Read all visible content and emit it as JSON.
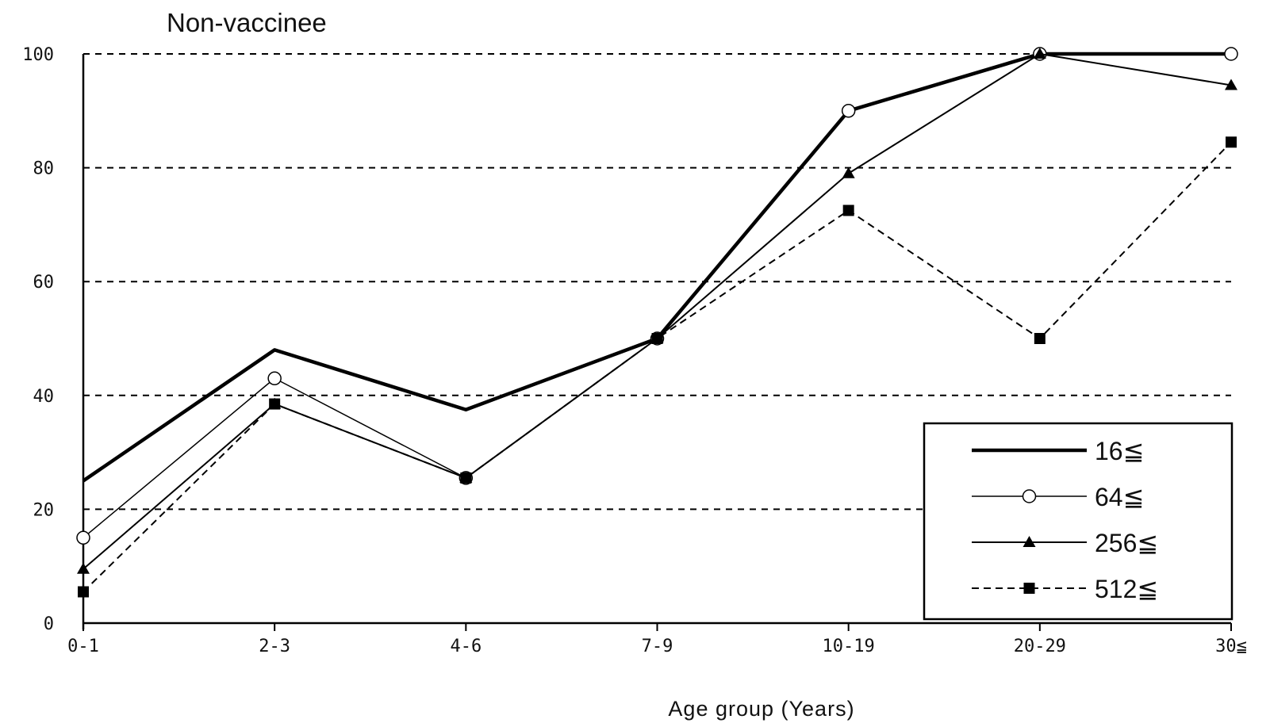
{
  "chart_data": {
    "type": "line",
    "title": "Non-vaccinee",
    "xlabel": "Age group (Years)",
    "ylabel": "",
    "categories": [
      "0-1",
      "2-3",
      "4-6",
      "7-9",
      "10-19",
      "20-29",
      "30≦"
    ],
    "ylim": [
      0,
      100
    ],
    "yticks": [
      0,
      20,
      40,
      60,
      80,
      100
    ],
    "grid": "horizontal-dashed",
    "legend_position": "bottom-right",
    "series": [
      {
        "name": "16≦",
        "marker": "none",
        "line": "thick-solid",
        "values": [
          25,
          48,
          37.5,
          50,
          90,
          100,
          100
        ]
      },
      {
        "name": "64≦",
        "marker": "open-circle",
        "line": "thin-solid",
        "values": [
          15,
          43,
          25.5,
          50,
          90,
          100,
          100
        ]
      },
      {
        "name": "256≦",
        "marker": "filled-triangle",
        "line": "solid",
        "values": [
          9.5,
          38.5,
          25.5,
          50,
          79,
          100,
          94.5
        ]
      },
      {
        "name": "512≦",
        "marker": "filled-square",
        "line": "dashed",
        "values": [
          5.5,
          38.5,
          25.5,
          50,
          72.5,
          50,
          84.5
        ]
      }
    ],
    "colors": {
      "line": "#000000",
      "grid": "#000000",
      "background": "#ffffff"
    }
  }
}
